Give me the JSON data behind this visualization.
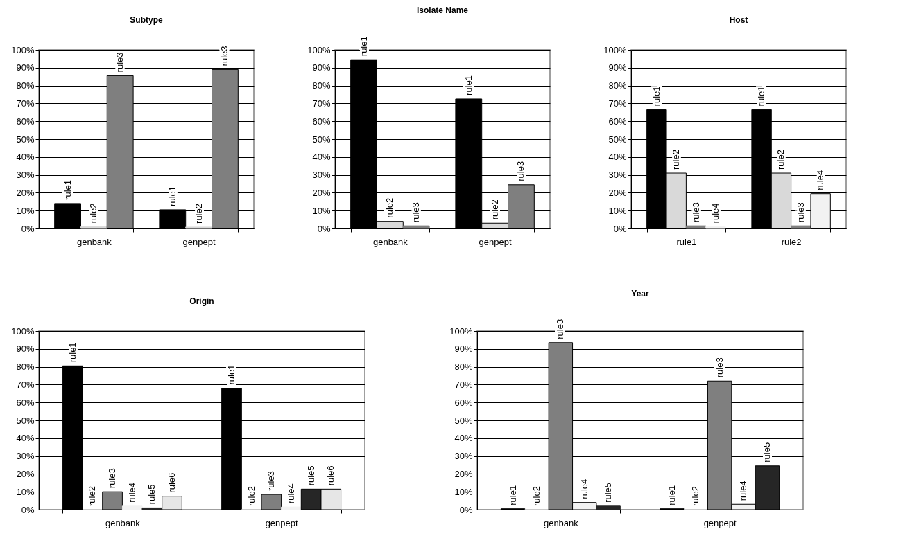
{
  "chart_data": [
    {
      "type": "bar",
      "title": "Subtype",
      "categories": [
        "genbank",
        "genpept"
      ],
      "series": [
        {
          "name": "rule1",
          "color": "#000000",
          "values": [
            14,
            10.5
          ]
        },
        {
          "name": "rule2",
          "color": "#d9d9d9",
          "values": [
            1,
            0.8
          ]
        },
        {
          "name": "rule3",
          "color": "#7f7f7f",
          "values": [
            85.5,
            89
          ]
        }
      ],
      "ylim": [
        0,
        100
      ],
      "yticks": [
        {
          "value": 0,
          "label": "0%"
        },
        {
          "value": 10,
          "label": "10%"
        },
        {
          "value": 20,
          "label": "20%"
        },
        {
          "value": 30,
          "label": "30%"
        },
        {
          "value": 40,
          "label": "40%"
        },
        {
          "value": 50,
          "label": "50%"
        },
        {
          "value": 60,
          "label": "60%"
        },
        {
          "value": 70,
          "label": "70%"
        },
        {
          "value": 80,
          "label": "80%"
        },
        {
          "value": 90,
          "label": "90%"
        },
        {
          "value": 100,
          "label": "100%"
        }
      ],
      "grid": "y",
      "legend": false
    },
    {
      "type": "bar",
      "title": "Isolate Name",
      "categories": [
        "genbank",
        "genpept"
      ],
      "series": [
        {
          "name": "rule1",
          "color": "#000000",
          "values": [
            94.5,
            72.5
          ]
        },
        {
          "name": "rule2",
          "color": "#d9d9d9",
          "values": [
            4,
            3
          ]
        },
        {
          "name": "rule3",
          "color": "#7f7f7f",
          "values": [
            1.5,
            24.5
          ]
        }
      ],
      "ylim": [
        0,
        100
      ],
      "yticks": [
        {
          "value": 0,
          "label": "0%"
        },
        {
          "value": 10,
          "label": "10%"
        },
        {
          "value": 20,
          "label": "20%"
        },
        {
          "value": 30,
          "label": "30%"
        },
        {
          "value": 40,
          "label": "40%"
        },
        {
          "value": 50,
          "label": "50%"
        },
        {
          "value": 60,
          "label": "60%"
        },
        {
          "value": 70,
          "label": "70%"
        },
        {
          "value": 80,
          "label": "80%"
        },
        {
          "value": 90,
          "label": "90%"
        },
        {
          "value": 100,
          "label": "100%"
        }
      ],
      "grid": "y",
      "legend": false
    },
    {
      "type": "bar",
      "title": "Host",
      "categories": [
        "rule1",
        "rule2"
      ],
      "series": [
        {
          "name": "rule1",
          "color": "#000000",
          "values": [
            66.5,
            66.5
          ]
        },
        {
          "name": "rule2",
          "color": "#d9d9d9",
          "values": [
            31,
            31
          ]
        },
        {
          "name": "rule3",
          "color": "#7f7f7f",
          "values": [
            1.5,
            1.5
          ]
        },
        {
          "name": "rule4",
          "color": "#f2f2f2",
          "values": [
            1,
            19.5
          ]
        }
      ],
      "ylim": [
        0,
        100
      ],
      "yticks": [
        {
          "value": 0,
          "label": "0%"
        },
        {
          "value": 10,
          "label": "10%"
        },
        {
          "value": 20,
          "label": "20%"
        },
        {
          "value": 30,
          "label": "30%"
        },
        {
          "value": 40,
          "label": "40%"
        },
        {
          "value": 50,
          "label": "50%"
        },
        {
          "value": 60,
          "label": "60%"
        },
        {
          "value": 70,
          "label": "70%"
        },
        {
          "value": 80,
          "label": "80%"
        },
        {
          "value": 90,
          "label": "90%"
        },
        {
          "value": 100,
          "label": "100%"
        }
      ],
      "grid": "y",
      "legend": false
    },
    {
      "type": "bar",
      "title": "Origin",
      "categories": [
        "genbank",
        "genpept"
      ],
      "series": [
        {
          "name": "rule1",
          "color": "#000000",
          "values": [
            80.5,
            68
          ]
        },
        {
          "name": "rule2",
          "color": "#d9d9d9",
          "values": [
            0,
            0
          ]
        },
        {
          "name": "rule3",
          "color": "#7f7f7f",
          "values": [
            10,
            8.5
          ]
        },
        {
          "name": "rule4",
          "color": "#f2f2f2",
          "values": [
            2,
            1.5
          ]
        },
        {
          "name": "rule5",
          "color": "#262626",
          "values": [
            1,
            11.5
          ]
        },
        {
          "name": "rule6",
          "color": "#e6e6e6",
          "values": [
            7.5,
            11.5
          ]
        }
      ],
      "ylim": [
        0,
        100
      ],
      "yticks": [
        {
          "value": 0,
          "label": "0%"
        },
        {
          "value": 10,
          "label": "10%"
        },
        {
          "value": 20,
          "label": "20%"
        },
        {
          "value": 30,
          "label": "30%"
        },
        {
          "value": 40,
          "label": "40%"
        },
        {
          "value": 50,
          "label": "50%"
        },
        {
          "value": 60,
          "label": "60%"
        },
        {
          "value": 70,
          "label": "70%"
        },
        {
          "value": 80,
          "label": "80%"
        },
        {
          "value": 90,
          "label": "90%"
        },
        {
          "value": 100,
          "label": "100%"
        }
      ],
      "grid": "y",
      "legend": false
    },
    {
      "type": "bar",
      "title": "Year",
      "categories": [
        "genbank",
        "genpept"
      ],
      "series": [
        {
          "name": "rule1",
          "color": "#000000",
          "values": [
            0.5,
            0.5
          ]
        },
        {
          "name": "rule2",
          "color": "#d9d9d9",
          "values": [
            0,
            0
          ]
        },
        {
          "name": "rule3",
          "color": "#7f7f7f",
          "values": [
            93.5,
            72
          ]
        },
        {
          "name": "rule4",
          "color": "#f2f2f2",
          "values": [
            4,
            3
          ]
        },
        {
          "name": "rule5",
          "color": "#262626",
          "values": [
            2,
            24.5
          ]
        }
      ],
      "ylim": [
        0,
        100
      ],
      "yticks": [
        {
          "value": 0,
          "label": "0%"
        },
        {
          "value": 10,
          "label": "10%"
        },
        {
          "value": 20,
          "label": "20%"
        },
        {
          "value": 30,
          "label": "30%"
        },
        {
          "value": 40,
          "label": "40%"
        },
        {
          "value": 50,
          "label": "50%"
        },
        {
          "value": 60,
          "label": "60%"
        },
        {
          "value": 70,
          "label": "70%"
        },
        {
          "value": 80,
          "label": "80%"
        },
        {
          "value": 90,
          "label": "90%"
        },
        {
          "value": 100,
          "label": "100%"
        }
      ],
      "grid": "y",
      "legend": false
    }
  ]
}
